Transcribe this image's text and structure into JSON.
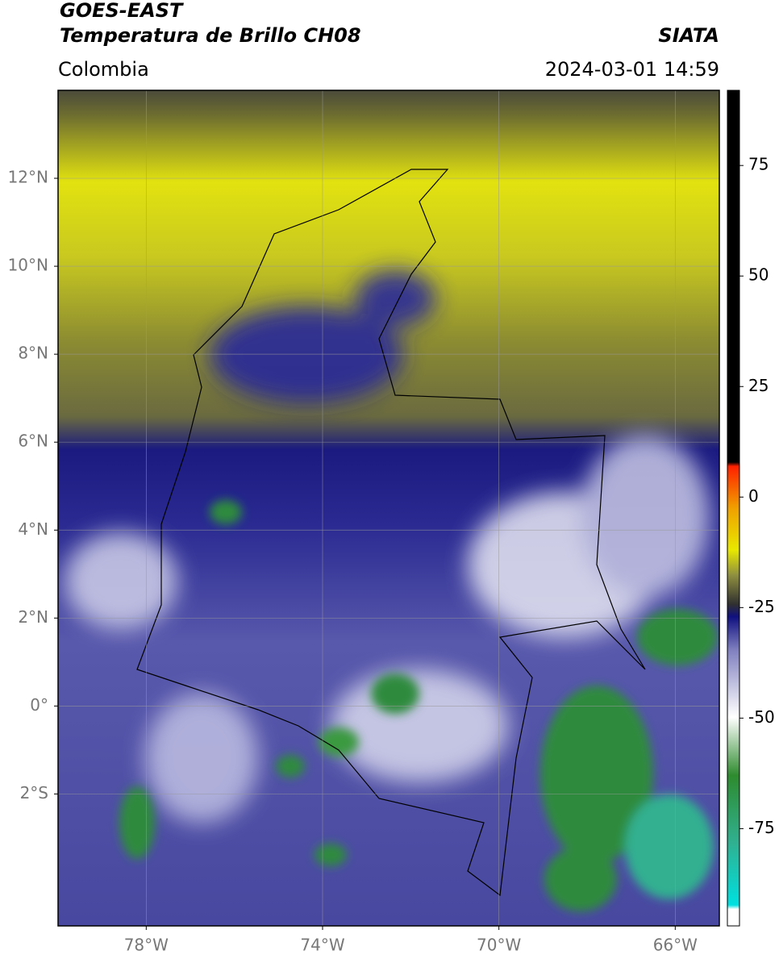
{
  "header": {
    "title": "GOES-EAST",
    "subtitle": "Temperatura de Brillo CH08",
    "source": "SIATA",
    "region": "Colombia",
    "datetime": "2024-03-01 14:59"
  },
  "map": {
    "lonlim": [
      -80,
      -65
    ],
    "latlim": [
      -5,
      14
    ],
    "xticks": [
      {
        "value": -78,
        "label": "78°W"
      },
      {
        "value": -74,
        "label": "74°W"
      },
      {
        "value": -70,
        "label": "70°W"
      },
      {
        "value": -66,
        "label": "66°W"
      }
    ],
    "yticks": [
      {
        "value": 12,
        "label": "12°N"
      },
      {
        "value": 10,
        "label": "10°N"
      },
      {
        "value": 8,
        "label": "8°N"
      },
      {
        "value": 6,
        "label": "6°N"
      },
      {
        "value": 4,
        "label": "4°N"
      },
      {
        "value": 2,
        "label": "2°N"
      },
      {
        "value": 0,
        "label": "0°"
      },
      {
        "value": -2,
        "label": "2°S"
      }
    ],
    "grid": true
  },
  "colorbar": {
    "lim": [
      -97,
      92
    ],
    "ticks": [
      75,
      50,
      25,
      0,
      -25,
      -50,
      -75
    ]
  }
}
